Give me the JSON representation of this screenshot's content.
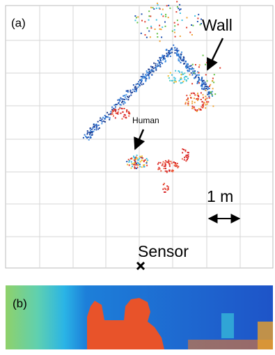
{
  "panel_a": {
    "label": "(a)",
    "annotations": {
      "wall": "Wall",
      "human": "Human",
      "scale": "1 m",
      "sensor": "Sensor"
    }
  },
  "panel_b": {
    "label": "(b)"
  }
}
